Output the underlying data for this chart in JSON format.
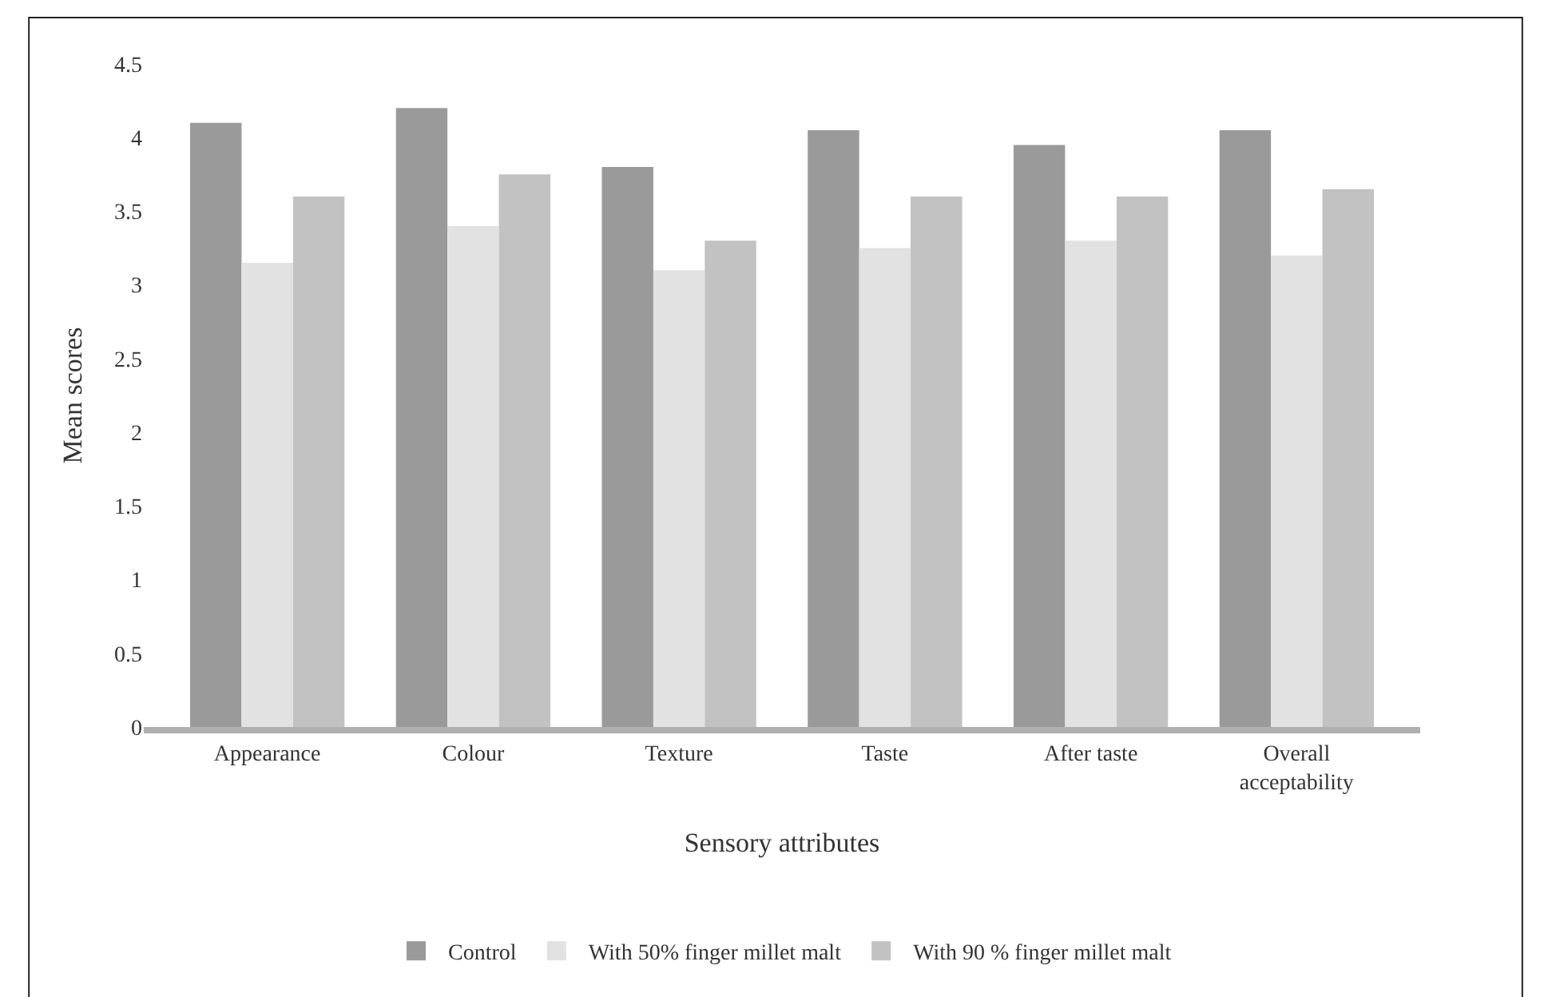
{
  "chart_data": {
    "type": "bar",
    "xlabel": "Sensory attributes",
    "ylabel": "Mean scores",
    "categories": [
      "Appearance",
      "Colour",
      "Texture",
      "Taste",
      "After taste",
      "Overall acceptability"
    ],
    "series": [
      {
        "name": "Control",
        "color": "#9a9a9a",
        "values": [
          4.1,
          4.2,
          3.8,
          4.05,
          3.95,
          4.05
        ]
      },
      {
        "name": "With 50% finger millet malt",
        "color": "#e2e2e2",
        "values": [
          3.15,
          3.4,
          3.1,
          3.25,
          3.3,
          3.2
        ]
      },
      {
        "name": "With 90 % finger millet malt",
        "color": "#c2c2c2",
        "values": [
          3.6,
          3.75,
          3.3,
          3.6,
          3.6,
          3.65
        ]
      }
    ],
    "ylim": [
      0,
      4.5
    ],
    "yticks": [
      0,
      0.5,
      1,
      1.5,
      2,
      2.5,
      3,
      3.5,
      4,
      4.5
    ],
    "grid": false,
    "legend": "bottom"
  }
}
